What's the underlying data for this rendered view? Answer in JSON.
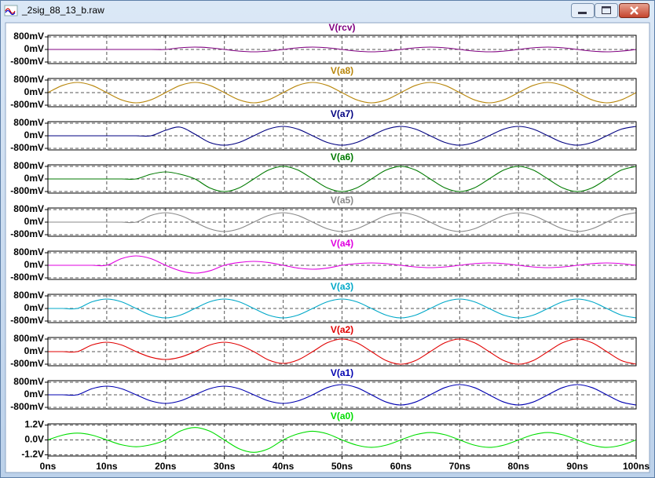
{
  "window": {
    "title": "_2sig_88_13_b.raw"
  },
  "chart_data": [
    {
      "type": "line",
      "title": "V(rcv)",
      "color": "#800080",
      "x": [
        0,
        2.5,
        5,
        7.5,
        10,
        12.5,
        15,
        17.5,
        20,
        22.5,
        25,
        27.5,
        30,
        32.5,
        35,
        37.5,
        40,
        42.5,
        45,
        47.5,
        50,
        52.5,
        55,
        57.5,
        60,
        62.5,
        65,
        67.5,
        70,
        72.5,
        75,
        77.5,
        80,
        82.5,
        85,
        87.5,
        90,
        92.5,
        95,
        97.5,
        100
      ],
      "values": [
        0,
        0,
        0,
        0,
        0,
        0,
        0,
        0,
        0,
        106,
        150,
        106,
        0,
        -106,
        -150,
        -106,
        0,
        106,
        150,
        106,
        0,
        -106,
        -150,
        -106,
        0,
        106,
        150,
        106,
        0,
        -106,
        -150,
        -106,
        0,
        106,
        150,
        106,
        0,
        -106,
        -150,
        -106,
        0
      ],
      "ylim": [
        -900,
        900
      ],
      "yticks": [
        {
          "value": 800,
          "label": "800mV"
        },
        {
          "value": 0,
          "label": "0mV"
        },
        {
          "value": -800,
          "label": "-800mV"
        }
      ]
    },
    {
      "type": "line",
      "title": "V(a8)",
      "color": "#b8860b",
      "x": [
        0,
        2.5,
        5,
        7.5,
        10,
        12.5,
        15,
        17.5,
        20,
        22.5,
        25,
        27.5,
        30,
        32.5,
        35,
        37.5,
        40,
        42.5,
        45,
        47.5,
        50,
        52.5,
        55,
        57.5,
        60,
        62.5,
        65,
        67.5,
        70,
        72.5,
        75,
        77.5,
        80,
        82.5,
        85,
        87.5,
        90,
        92.5,
        95,
        97.5,
        100
      ],
      "values": [
        0,
        460,
        650,
        460,
        0,
        -460,
        -650,
        -460,
        0,
        460,
        650,
        460,
        0,
        -460,
        -650,
        -460,
        0,
        460,
        650,
        460,
        0,
        -460,
        -650,
        -460,
        0,
        460,
        650,
        460,
        0,
        -460,
        -650,
        -460,
        0,
        460,
        650,
        460,
        0,
        -460,
        -650,
        -460,
        0
      ],
      "ylim": [
        -900,
        900
      ],
      "yticks": [
        {
          "value": 800,
          "label": "800mV"
        },
        {
          "value": 0,
          "label": "0mV"
        },
        {
          "value": -800,
          "label": "-800mV"
        }
      ]
    },
    {
      "type": "line",
      "title": "V(a7)",
      "color": "#000080",
      "x": [
        0,
        2.5,
        5,
        7.5,
        10,
        12.5,
        15,
        17.5,
        20,
        22.5,
        25,
        27.5,
        30,
        32.5,
        35,
        37.5,
        40,
        42.5,
        45,
        47.5,
        50,
        52.5,
        55,
        57.5,
        60,
        62.5,
        65,
        67.5,
        70,
        72.5,
        75,
        77.5,
        80,
        82.5,
        85,
        87.5,
        90,
        92.5,
        95,
        97.5,
        100
      ],
      "values": [
        0,
        0,
        0,
        0,
        0,
        0,
        0,
        0,
        350,
        550,
        100,
        -424,
        -600,
        -424,
        0,
        424,
        600,
        424,
        0,
        -424,
        -600,
        -424,
        0,
        424,
        600,
        424,
        0,
        -424,
        -600,
        -424,
        0,
        424,
        600,
        424,
        0,
        -424,
        -600,
        -424,
        0,
        424,
        600
      ],
      "ylim": [
        -900,
        900
      ],
      "yticks": [
        {
          "value": 800,
          "label": "800mV"
        },
        {
          "value": 0,
          "label": "0mV"
        },
        {
          "value": -800,
          "label": "-800mV"
        }
      ]
    },
    {
      "type": "line",
      "title": "V(a6)",
      "color": "#007a00",
      "x": [
        0,
        2.5,
        5,
        7.5,
        10,
        12.5,
        15,
        17.5,
        20,
        22.5,
        25,
        27.5,
        30,
        32.5,
        35,
        37.5,
        40,
        42.5,
        45,
        47.5,
        50,
        52.5,
        55,
        57.5,
        60,
        62.5,
        65,
        67.5,
        70,
        72.5,
        75,
        77.5,
        80,
        82.5,
        85,
        87.5,
        90,
        92.5,
        95,
        97.5,
        100
      ],
      "values": [
        0,
        0,
        0,
        0,
        0,
        0,
        0,
        300,
        450,
        300,
        0,
        -566,
        -800,
        -566,
        0,
        566,
        800,
        566,
        0,
        -566,
        -800,
        -566,
        0,
        566,
        800,
        566,
        0,
        -566,
        -800,
        -566,
        0,
        566,
        800,
        566,
        0,
        -566,
        -800,
        -566,
        0,
        566,
        800
      ],
      "ylim": [
        -900,
        900
      ],
      "yticks": [
        {
          "value": 800,
          "label": "800mV"
        },
        {
          "value": 0,
          "label": "0mV"
        },
        {
          "value": -800,
          "label": "-800mV"
        }
      ]
    },
    {
      "type": "line",
      "title": "V(a5)",
      "color": "#888888",
      "x": [
        0,
        2.5,
        5,
        7.5,
        10,
        12.5,
        15,
        17.5,
        20,
        22.5,
        25,
        27.5,
        30,
        32.5,
        35,
        37.5,
        40,
        42.5,
        45,
        47.5,
        50,
        52.5,
        55,
        57.5,
        60,
        62.5,
        65,
        67.5,
        70,
        72.5,
        75,
        77.5,
        80,
        82.5,
        85,
        87.5,
        90,
        92.5,
        95,
        97.5,
        100
      ],
      "values": [
        0,
        0,
        0,
        0,
        0,
        0,
        0,
        424,
        600,
        424,
        0,
        -424,
        -600,
        -424,
        0,
        424,
        600,
        424,
        0,
        -424,
        -600,
        -424,
        0,
        424,
        600,
        424,
        0,
        -424,
        -600,
        -424,
        0,
        424,
        600,
        424,
        0,
        -424,
        -600,
        -424,
        0,
        424,
        600
      ],
      "ylim": [
        -900,
        900
      ],
      "yticks": [
        {
          "value": 800,
          "label": "800mV"
        },
        {
          "value": 0,
          "label": "0mV"
        },
        {
          "value": -800,
          "label": "-800mV"
        }
      ]
    },
    {
      "type": "line",
      "title": "V(a4)",
      "color": "#e000e0",
      "x": [
        0,
        2.5,
        5,
        7.5,
        10,
        12.5,
        15,
        17.5,
        20,
        22.5,
        25,
        27.5,
        30,
        32.5,
        35,
        37.5,
        40,
        42.5,
        45,
        47.5,
        50,
        52.5,
        55,
        57.5,
        60,
        62.5,
        65,
        67.5,
        70,
        72.5,
        75,
        77.5,
        80,
        82.5,
        85,
        87.5,
        90,
        92.5,
        95,
        97.5,
        100
      ],
      "values": [
        0,
        0,
        0,
        0,
        0,
        424,
        600,
        424,
        0,
        -354,
        -500,
        -354,
        0,
        177,
        250,
        177,
        0,
        -177,
        -250,
        -177,
        0,
        106,
        150,
        106,
        0,
        -106,
        -150,
        -106,
        0,
        106,
        150,
        106,
        0,
        -106,
        -150,
        -106,
        0,
        106,
        150,
        106,
        0
      ],
      "ylim": [
        -900,
        900
      ],
      "yticks": [
        {
          "value": 800,
          "label": "800mV"
        },
        {
          "value": 0,
          "label": "0mV"
        },
        {
          "value": -800,
          "label": "-800mV"
        }
      ]
    },
    {
      "type": "line",
      "title": "V(a3)",
      "color": "#00a8c8",
      "x": [
        0,
        2.5,
        5,
        7.5,
        10,
        12.5,
        15,
        17.5,
        20,
        22.5,
        25,
        27.5,
        30,
        32.5,
        35,
        37.5,
        40,
        42.5,
        45,
        47.5,
        50,
        52.5,
        55,
        57.5,
        60,
        62.5,
        65,
        67.5,
        70,
        72.5,
        75,
        77.5,
        80,
        82.5,
        85,
        87.5,
        90,
        92.5,
        95,
        97.5,
        100
      ],
      "values": [
        0,
        0,
        0,
        424,
        600,
        424,
        0,
        -424,
        -600,
        -424,
        0,
        424,
        600,
        424,
        0,
        -424,
        -600,
        -424,
        0,
        424,
        600,
        424,
        0,
        -424,
        -600,
        -424,
        0,
        424,
        600,
        424,
        0,
        -424,
        -600,
        -424,
        0,
        424,
        600,
        424,
        0,
        -424,
        -600
      ],
      "ylim": [
        -900,
        900
      ],
      "yticks": [
        {
          "value": 800,
          "label": "800mV"
        },
        {
          "value": 0,
          "label": "0mV"
        },
        {
          "value": -800,
          "label": "-800mV"
        }
      ]
    },
    {
      "type": "line",
      "title": "V(a2)",
      "color": "#e00000",
      "x": [
        0,
        2.5,
        5,
        7.5,
        10,
        12.5,
        15,
        17.5,
        20,
        22.5,
        25,
        27.5,
        30,
        32.5,
        35,
        37.5,
        40,
        42.5,
        45,
        47.5,
        50,
        52.5,
        55,
        57.5,
        60,
        62.5,
        65,
        67.5,
        70,
        72.5,
        75,
        77.5,
        80,
        82.5,
        85,
        87.5,
        90,
        92.5,
        95,
        97.5,
        100
      ],
      "values": [
        0,
        0,
        0,
        424,
        600,
        424,
        0,
        -354,
        -500,
        -354,
        0,
        424,
        600,
        424,
        0,
        -530,
        -750,
        -530,
        0,
        566,
        800,
        566,
        0,
        -566,
        -800,
        -566,
        0,
        566,
        800,
        566,
        0,
        -566,
        -800,
        -566,
        0,
        566,
        800,
        566,
        0,
        -566,
        -800
      ],
      "ylim": [
        -900,
        900
      ],
      "yticks": [
        {
          "value": 800,
          "label": "800mV"
        },
        {
          "value": 0,
          "label": "0mV"
        },
        {
          "value": -800,
          "label": "-800mV"
        }
      ]
    },
    {
      "type": "line",
      "title": "V(a1)",
      "color": "#0000b0",
      "x": [
        0,
        2.5,
        5,
        7.5,
        10,
        12.5,
        15,
        17.5,
        20,
        22.5,
        25,
        27.5,
        30,
        32.5,
        35,
        37.5,
        40,
        42.5,
        45,
        47.5,
        50,
        52.5,
        55,
        57.5,
        60,
        62.5,
        65,
        67.5,
        70,
        72.5,
        75,
        77.5,
        80,
        82.5,
        85,
        87.5,
        90,
        92.5,
        95,
        97.5,
        100
      ],
      "values": [
        0,
        0,
        0,
        389,
        550,
        389,
        0,
        -389,
        -550,
        -389,
        0,
        389,
        550,
        389,
        0,
        -389,
        -550,
        -389,
        0,
        460,
        650,
        460,
        0,
        -460,
        -650,
        -460,
        0,
        460,
        650,
        460,
        0,
        -460,
        -650,
        -460,
        0,
        460,
        650,
        460,
        0,
        -460,
        -650
      ],
      "ylim": [
        -900,
        900
      ],
      "yticks": [
        {
          "value": 800,
          "label": "800mV"
        },
        {
          "value": 0,
          "label": "0mV"
        },
        {
          "value": -800,
          "label": "-800mV"
        }
      ]
    },
    {
      "type": "line",
      "title": "V(a0)",
      "color": "#00dd00",
      "x": [
        0,
        2.5,
        5,
        7.5,
        10,
        12.5,
        15,
        17.5,
        20,
        22.5,
        25,
        27.5,
        30,
        32.5,
        35,
        37.5,
        40,
        42.5,
        45,
        47.5,
        50,
        52.5,
        55,
        57.5,
        60,
        62.5,
        65,
        67.5,
        70,
        72.5,
        75,
        77.5,
        80,
        82.5,
        85,
        87.5,
        90,
        92.5,
        95,
        97.5,
        100
      ],
      "values": [
        0,
        0.39,
        0.55,
        0.39,
        0,
        -0.39,
        -0.55,
        -0.39,
        0,
        0.71,
        1.0,
        0.71,
        0,
        -0.71,
        -1.0,
        -0.71,
        0,
        0.49,
        0.7,
        0.49,
        0,
        -0.42,
        -0.6,
        -0.42,
        0,
        0.42,
        0.6,
        0.42,
        0,
        -0.42,
        -0.6,
        -0.42,
        0,
        0.42,
        0.6,
        0.42,
        0,
        -0.42,
        -0.6,
        -0.42,
        0
      ],
      "ylim": [
        -1.3,
        1.3
      ],
      "yticks": [
        {
          "value": 1.2,
          "label": "1.2V"
        },
        {
          "value": 0,
          "label": "0.0V"
        },
        {
          "value": -1.2,
          "label": "-1.2V"
        }
      ],
      "xlim": [
        0,
        100
      ],
      "xticks": [
        {
          "value": 0,
          "label": "0ns"
        },
        {
          "value": 10,
          "label": "10ns"
        },
        {
          "value": 20,
          "label": "20ns"
        },
        {
          "value": 30,
          "label": "30ns"
        },
        {
          "value": 40,
          "label": "40ns"
        },
        {
          "value": 50,
          "label": "50ns"
        },
        {
          "value": 60,
          "label": "60ns"
        },
        {
          "value": 70,
          "label": "70ns"
        },
        {
          "value": 80,
          "label": "80ns"
        },
        {
          "value": 90,
          "label": "90ns"
        },
        {
          "value": 100,
          "label": "100ns"
        }
      ]
    }
  ]
}
